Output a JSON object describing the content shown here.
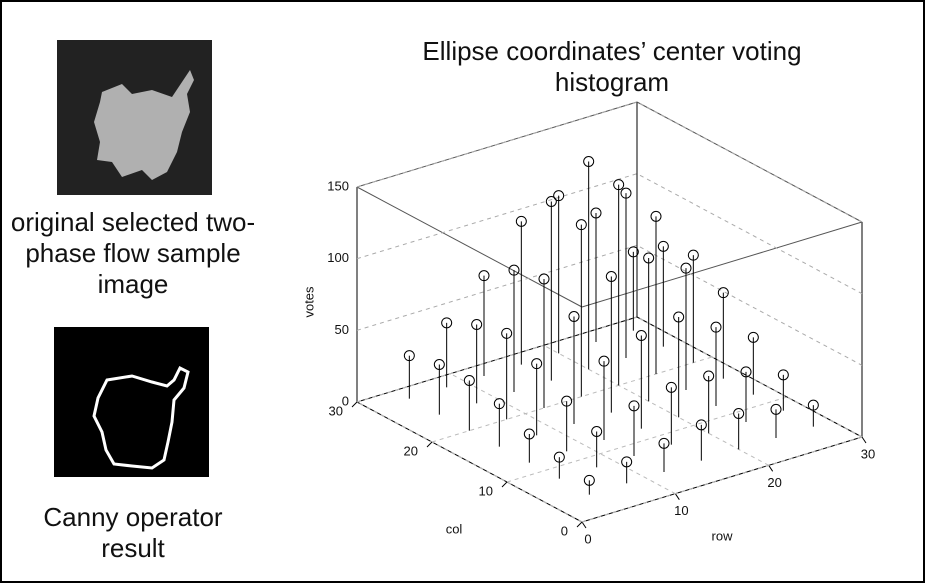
{
  "panels": {
    "original_caption": "original selected two-phase flow sample image",
    "canny_caption": "Canny operator result"
  },
  "chart_data": {
    "type": "stem3d",
    "title": "Ellipse coordinates’ center voting histogram",
    "xlabel": "row",
    "ylabel": "col",
    "zlabel": "votes",
    "rows": [
      4,
      8,
      12,
      16,
      20,
      24,
      28
    ],
    "cols": [
      4,
      8,
      12,
      16,
      20,
      24,
      28
    ],
    "votes": [
      [
        10,
        15,
        20,
        30,
        35,
        35,
        30
      ],
      [
        15,
        25,
        35,
        50,
        60,
        55,
        45
      ],
      [
        20,
        35,
        55,
        75,
        90,
        85,
        70
      ],
      [
        25,
        40,
        65,
        95,
        120,
        125,
        100
      ],
      [
        25,
        40,
        70,
        100,
        140,
        145,
        110
      ],
      [
        20,
        35,
        55,
        85,
        110,
        115,
        90
      ],
      [
        15,
        25,
        40,
        60,
        75,
        70,
        55
      ]
    ],
    "xlim": [
      0,
      30
    ],
    "xticks": [
      0,
      10,
      20,
      30
    ],
    "ylim": [
      0,
      30
    ],
    "yticks": [
      0,
      10,
      20,
      30
    ],
    "zlim": [
      0,
      150
    ],
    "zticks": [
      0,
      50,
      100,
      150
    ],
    "color": "#000000",
    "grid": true
  }
}
